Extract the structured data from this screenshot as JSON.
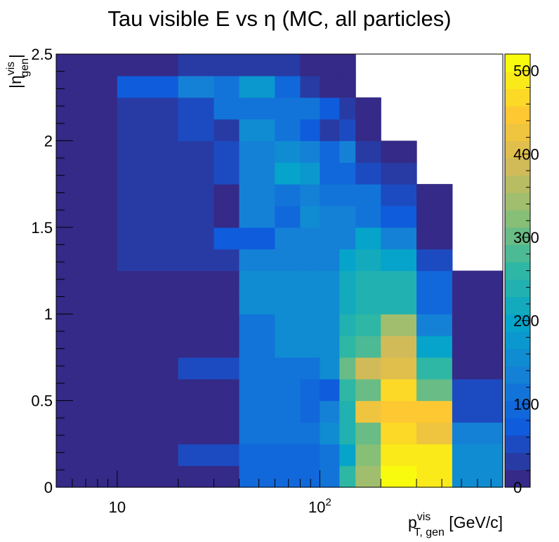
{
  "chart_data": {
    "type": "heatmap",
    "title": "Tau visible E vs η (MC, all particles)",
    "xlabel": {
      "main": "p",
      "sup": "vis",
      "sub": "T, gen",
      "unit": " [GeV/c]"
    },
    "ylabel": {
      "pre": "|η",
      "sup": "vis",
      "sub": "gen",
      "post": "|"
    },
    "x_scale": "log",
    "xlim": [
      5,
      800
    ],
    "ylim": [
      0,
      2.5
    ],
    "x_ticklabels": [
      {
        "value": 10,
        "base": "10",
        "exp": ""
      },
      {
        "value": 100,
        "base": "10",
        "exp": "2"
      }
    ],
    "y_ticklabels": [
      "0",
      "0.5",
      "1",
      "1.5",
      "2",
      "2.5"
    ],
    "zlim": [
      0,
      520
    ],
    "colorbar_ticklabels": [
      {
        "value": 0,
        "label": "0"
      },
      {
        "value": 100,
        "label": "100"
      },
      {
        "value": 200,
        "label": "200"
      },
      {
        "value": 300,
        "label": "300"
      },
      {
        "value": 400,
        "label": "400"
      },
      {
        "value": 500,
        "label": "500"
      }
    ],
    "x_edges": [
      5,
      10,
      20,
      30,
      40,
      60,
      80,
      100,
      125,
      150,
      200,
      300,
      450,
      800
    ],
    "y_edges": [
      0,
      0.125,
      0.25,
      0.375,
      0.5,
      0.625,
      0.75,
      0.875,
      1.0,
      1.125,
      1.25,
      1.375,
      1.5,
      1.625,
      1.75,
      1.875,
      2.0,
      2.125,
      2.25,
      2.375,
      2.5
    ],
    "values": [
      [
        0,
        0,
        0,
        0,
        100,
        100,
        100,
        110,
        270,
        350,
        520,
        490,
        150
      ],
      [
        0,
        0,
        60,
        60,
        100,
        100,
        100,
        120,
        200,
        320,
        490,
        490,
        150
      ],
      [
        0,
        0,
        0,
        20,
        110,
        120,
        120,
        150,
        230,
        300,
        470,
        420,
        130
      ],
      [
        0,
        0,
        0,
        20,
        110,
        120,
        90,
        130,
        240,
        430,
        440,
        440,
        60
      ],
      [
        0,
        0,
        0,
        20,
        110,
        120,
        100,
        80,
        250,
        300,
        470,
        300,
        60
      ],
      [
        0,
        0,
        60,
        60,
        110,
        120,
        120,
        150,
        300,
        380,
        400,
        270,
        0
      ],
      [
        0,
        0,
        0,
        20,
        120,
        160,
        160,
        150,
        250,
        280,
        390,
        200,
        0
      ],
      [
        0,
        0,
        0,
        20,
        120,
        160,
        160,
        150,
        230,
        260,
        350,
        140,
        0
      ],
      [
        0,
        0,
        20,
        20,
        150,
        150,
        150,
        150,
        220,
        240,
        230,
        90,
        0
      ],
      [
        0,
        0,
        20,
        20,
        150,
        150,
        150,
        150,
        220,
        240,
        230,
        90,
        0
      ],
      [
        0,
        40,
        40,
        40,
        140,
        140,
        140,
        140,
        190,
        220,
        190,
        50,
        null
      ],
      [
        0,
        40,
        40,
        80,
        80,
        130,
        130,
        130,
        130,
        190,
        130,
        0,
        null
      ],
      [
        0,
        40,
        40,
        20,
        140,
        100,
        160,
        140,
        140,
        110,
        70,
        0,
        null
      ],
      [
        0,
        40,
        40,
        20,
        140,
        110,
        140,
        110,
        110,
        110,
        50,
        0,
        null
      ],
      [
        0,
        40,
        40,
        60,
        140,
        190,
        170,
        90,
        90,
        60,
        40,
        null,
        null
      ],
      [
        0,
        40,
        40,
        60,
        140,
        150,
        130,
        100,
        130,
        40,
        0,
        null,
        null
      ],
      [
        0,
        40,
        60,
        30,
        160,
        110,
        80,
        40,
        60,
        0,
        null,
        null,
        null
      ],
      [
        0,
        40,
        60,
        120,
        120,
        120,
        120,
        70,
        40,
        0,
        null,
        null,
        null
      ],
      [
        0,
        70,
        130,
        110,
        170,
        90,
        40,
        0,
        0,
        null,
        null,
        null,
        null
      ],
      [
        0,
        0,
        30,
        30,
        30,
        30,
        0,
        0,
        0,
        null,
        null,
        null,
        null
      ]
    ]
  }
}
